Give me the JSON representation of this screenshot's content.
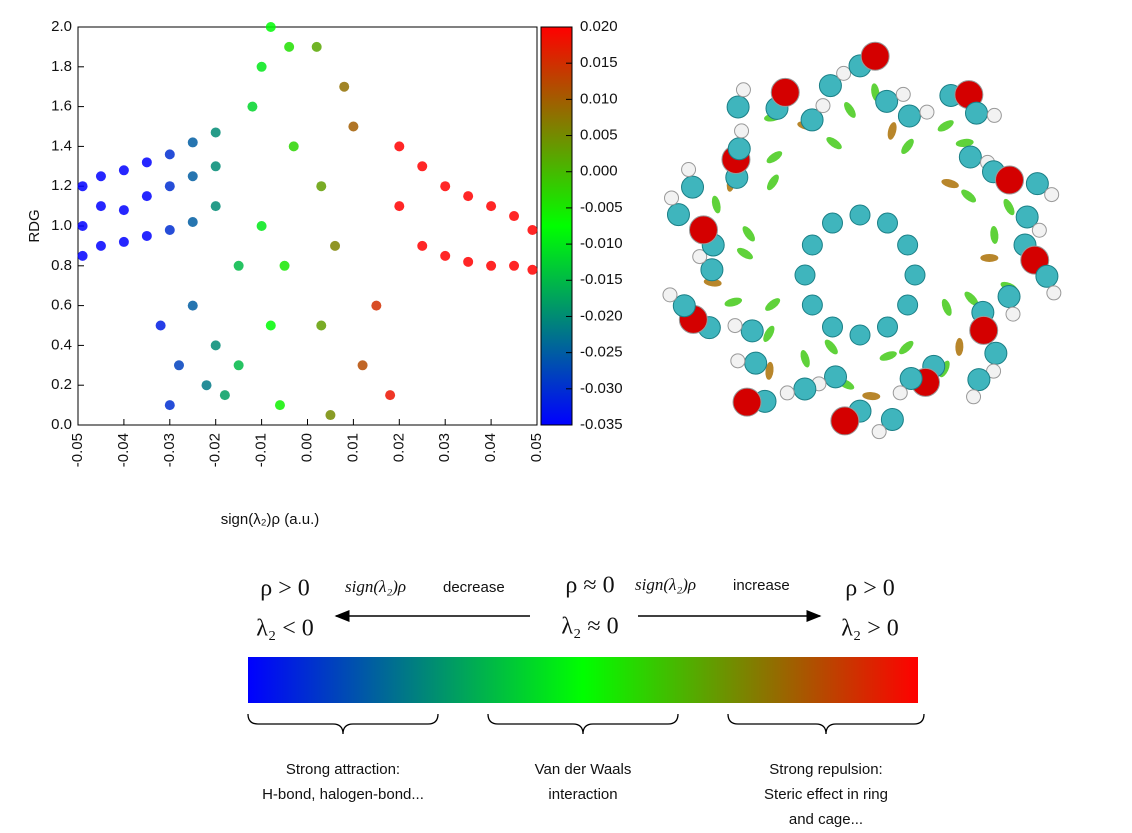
{
  "chart_data": {
    "type": "scatter",
    "x_label": "sign(λ₂)ρ (a.u.)",
    "y_label": "RDG",
    "xlim": [
      -0.05,
      0.05
    ],
    "ylim": [
      0,
      2
    ],
    "xticks": [
      -0.05,
      -0.04,
      -0.03,
      -0.02,
      -0.01,
      {
        "value": 0,
        "label": "0.00"
      },
      0.01,
      0.02,
      0.03,
      0.04,
      0.05
    ],
    "yticks": [
      {
        "value": 0,
        "label": "0.0"
      },
      0.2,
      0.4,
      0.6,
      0.8,
      {
        "value": 1,
        "label": "1.0"
      },
      1.2,
      1.4,
      1.6,
      1.8,
      {
        "value": 2,
        "label": "2.0"
      }
    ],
    "colorbar": {
      "colors": [
        "#0000ff",
        "#00ff00",
        "#ff0000"
      ],
      "clim": [
        -0.035,
        0.02
      ],
      "ticks": [
        {
          "value": 0.02,
          "label": "0.020"
        },
        0.015,
        {
          "value": 0.01,
          "label": "0.010"
        },
        0.005,
        {
          "value": 0,
          "label": "0.000"
        },
        -0.005,
        {
          "value": -0.01,
          "label": "-0.010"
        },
        -0.015,
        {
          "value": -0.02,
          "label": "-0.020"
        },
        -0.025,
        {
          "value": -0.03,
          "label": "-0.030"
        },
        -0.035
      ]
    },
    "x": [
      -0.049,
      -0.049,
      -0.049,
      -0.045,
      -0.045,
      -0.045,
      -0.04,
      -0.04,
      -0.04,
      -0.035,
      -0.035,
      -0.035,
      -0.03,
      -0.03,
      -0.03,
      -0.025,
      -0.025,
      -0.025,
      -0.02,
      -0.02,
      -0.02,
      -0.03,
      -0.028,
      -0.032,
      -0.025,
      -0.022,
      -0.02,
      -0.018,
      -0.015,
      -0.015,
      -0.012,
      -0.01,
      -0.008,
      -0.01,
      -0.008,
      -0.006,
      -0.005,
      -0.003,
      -0.004,
      0.002,
      0.003,
      0.003,
      0.005,
      0.006,
      0.008,
      0.01,
      0.012,
      0.015,
      0.018,
      0.02,
      0.02,
      0.025,
      0.025,
      0.03,
      0.03,
      0.035,
      0.035,
      0.04,
      0.04,
      0.045,
      0.045,
      0.049,
      0.049
    ],
    "y": [
      0.85,
      1.0,
      1.2,
      0.9,
      1.1,
      1.25,
      0.92,
      1.08,
      1.28,
      0.95,
      1.15,
      1.32,
      0.98,
      1.2,
      1.36,
      1.02,
      1.25,
      1.42,
      1.1,
      1.3,
      1.47,
      0.1,
      0.3,
      0.5,
      0.6,
      0.2,
      0.4,
      0.15,
      0.3,
      0.8,
      1.6,
      1.8,
      2.0,
      1.0,
      0.5,
      0.1,
      0.8,
      1.4,
      1.9,
      1.9,
      1.2,
      0.5,
      0.05,
      0.9,
      1.7,
      1.5,
      0.3,
      0.6,
      0.15,
      1.1,
      1.4,
      0.9,
      1.3,
      0.85,
      1.2,
      0.82,
      1.15,
      0.8,
      1.1,
      0.8,
      1.05,
      0.78,
      0.98
    ]
  },
  "diagram": {
    "left": [
      "ρ > 0",
      "λ₂ < 0"
    ],
    "center": [
      "ρ ≈ 0",
      "λ₂ ≈ 0"
    ],
    "right": [
      "ρ > 0",
      "λ₂ > 0"
    ],
    "decrease": [
      "sign(λ₂)ρ",
      " decrease"
    ],
    "increase": [
      "sign(λ₂)ρ",
      " increase"
    ],
    "braces": [
      [
        "Strong attraction:",
        "H-bond, halogen-bond..."
      ],
      [
        "Van der Waals",
        "interaction"
      ],
      [
        "Strong repulsion:",
        "Steric effect in ring",
        "and cage..."
      ]
    ]
  }
}
